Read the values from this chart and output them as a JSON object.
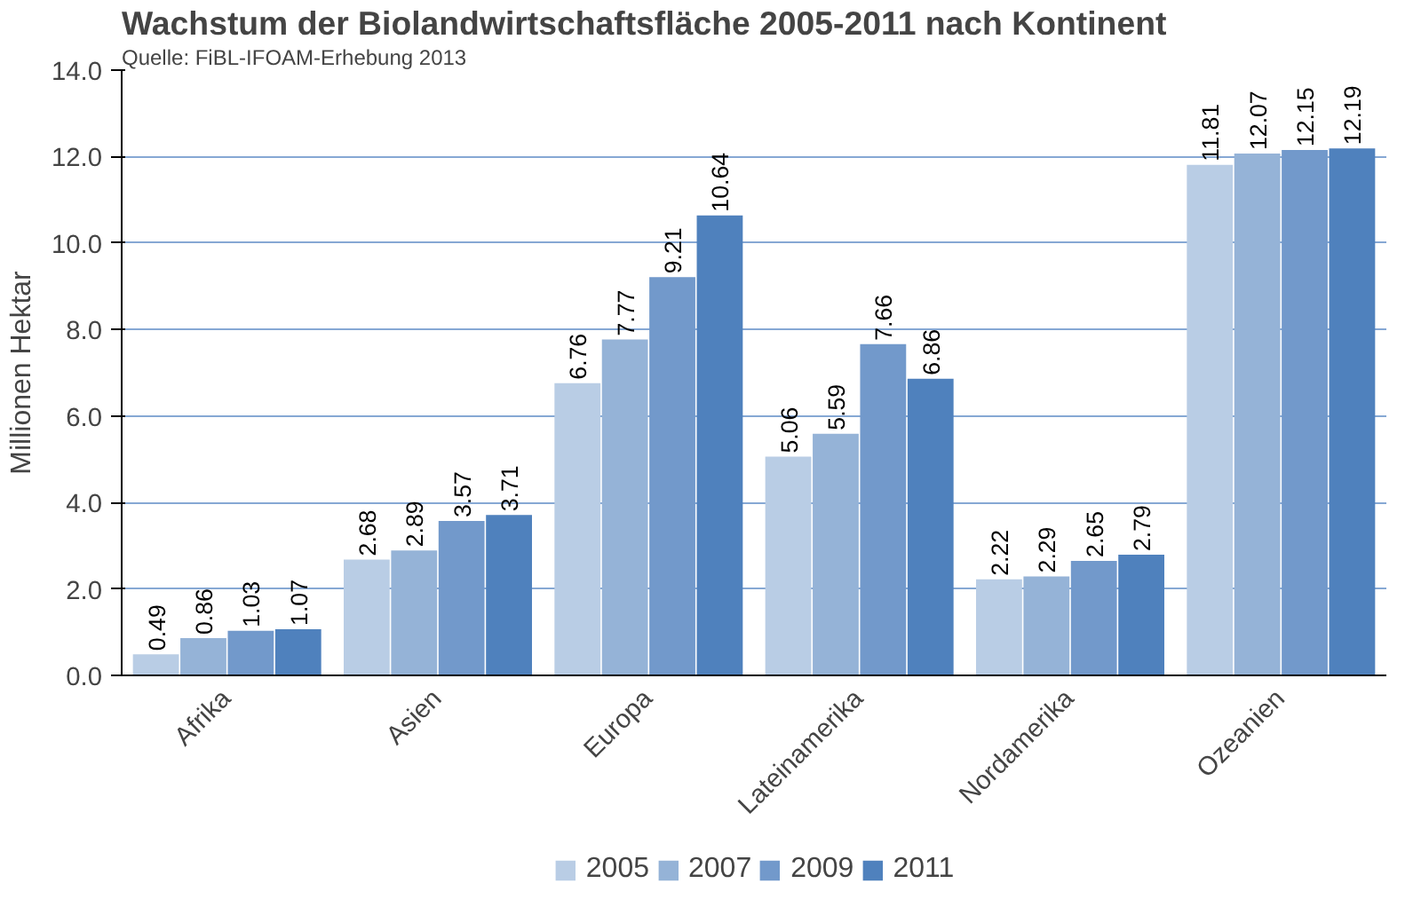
{
  "chart_data": {
    "type": "bar",
    "title": "Wachstum der Biolandwirtschaftsfläche 2005-2011 nach Kontinent",
    "subtitle": "Quelle: FiBL-IFOAM-Erhebung 2013",
    "ylabel": "Millionen Hektar",
    "categories": [
      "Afrika",
      "Asien",
      "Europa",
      "Lateinamerika",
      "Nordamerika",
      "Ozeanien"
    ],
    "series": [
      {
        "name": "2005",
        "color": "#b9cde5",
        "values": [
          0.49,
          2.68,
          6.76,
          5.06,
          2.22,
          11.81
        ]
      },
      {
        "name": "2007",
        "color": "#95b3d7",
        "values": [
          0.86,
          2.89,
          7.77,
          5.59,
          2.29,
          12.07
        ]
      },
      {
        "name": "2009",
        "color": "#7299cb",
        "values": [
          1.03,
          3.57,
          9.21,
          7.66,
          2.65,
          12.15
        ]
      },
      {
        "name": "2011",
        "color": "#4f81bd",
        "values": [
          1.07,
          3.71,
          10.64,
          6.86,
          2.79,
          12.19
        ]
      }
    ],
    "ylim": [
      0,
      14
    ],
    "yticks": [
      {
        "value": 0,
        "label": "0.0"
      },
      {
        "value": 2,
        "label": "2.0"
      },
      {
        "value": 4,
        "label": "4.0"
      },
      {
        "value": 6,
        "label": "6.0"
      },
      {
        "value": 8,
        "label": "8.0"
      },
      {
        "value": 10,
        "label": "10.0"
      },
      {
        "value": 12,
        "label": "12.0"
      },
      {
        "value": 14,
        "label": "14.0"
      }
    ],
    "grid": "y",
    "legend": "bottom",
    "data_labels": true
  }
}
